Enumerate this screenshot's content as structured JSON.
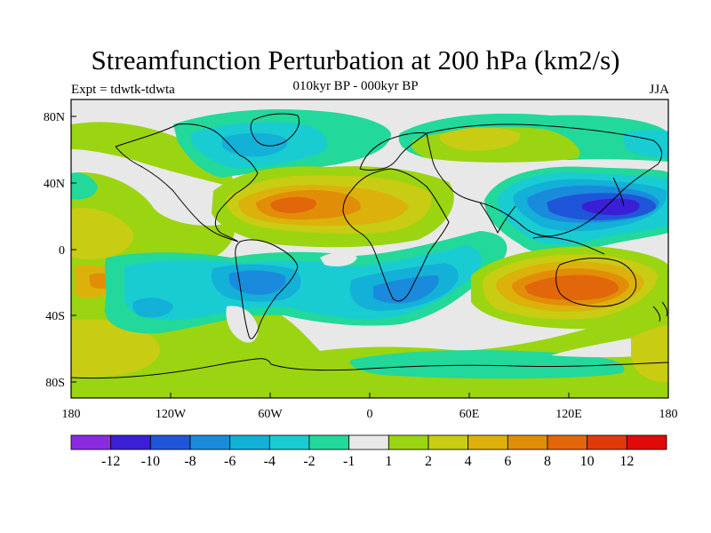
{
  "figure": {
    "title": "Streamfunction Perturbation at 200 hPa (km2/s)",
    "experiment": "Expt = tdwtk-tdwta",
    "subtitle": "010kyr BP - 000kyr BP",
    "season": "JJA"
  },
  "axes": {
    "x_ticks": [
      "180",
      "120W",
      "60W",
      "0",
      "60E",
      "120E",
      "180"
    ],
    "y_ticks": [
      "80N",
      "40N",
      "0",
      "40S",
      "80S"
    ]
  },
  "colorbar": {
    "labels": [
      "-12",
      "-10",
      "-8",
      "-6",
      "-4",
      "-2",
      "-1",
      "1",
      "2",
      "4",
      "6",
      "8",
      "10",
      "12"
    ],
    "colors": [
      "#8a2be2",
      "#3a1fd6",
      "#1f55d8",
      "#1a8bdc",
      "#13b0d8",
      "#19ccd2",
      "#22d89a",
      "#e8e8e8",
      "#9bd411",
      "#c8cc12",
      "#dcb10b",
      "#e28d08",
      "#e2660a",
      "#e03a08",
      "#e00a0a"
    ]
  },
  "map": {
    "background_color": "#e8e8e8",
    "level_colors": {
      "n12": "#8a2be2",
      "n10": "#3a1fd6",
      "n8": "#1f55d8",
      "n6": "#1a8bdc",
      "n4": "#13b0d8",
      "n2": "#19ccd2",
      "n1": "#22d89a",
      "zero": "#e8e8e8",
      "p1": "#9bd411",
      "p2": "#c8cc12",
      "p4": "#dcb10b",
      "p6": "#e28d08",
      "p8": "#e2660a",
      "p10": "#e03a08"
    }
  }
}
